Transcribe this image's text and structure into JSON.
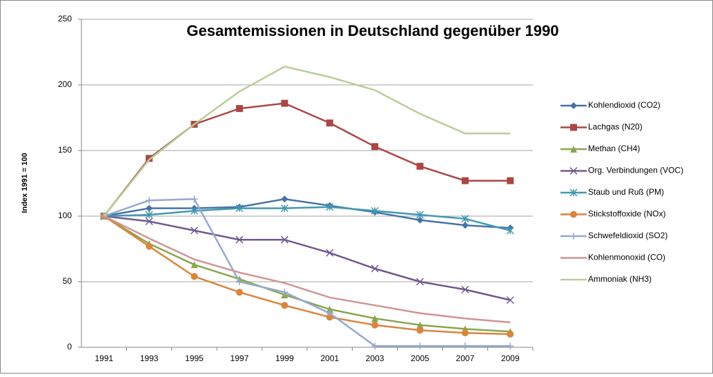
{
  "chart_data": {
    "type": "line",
    "title": "Gesamtemissionen in Deutschland  gegenüber 1990",
    "y_label": "Index 1991 = 100",
    "categories": [
      "1991",
      "1993",
      "1995",
      "1997",
      "1999",
      "2001",
      "2003",
      "2005",
      "2007",
      "2009"
    ],
    "ylim": [
      0,
      250
    ],
    "yticks": [
      0,
      50,
      100,
      150,
      200,
      250
    ],
    "grid": true,
    "legend": "right",
    "series": [
      {
        "name": "Kohlendioxid (CO2)",
        "color": "#4572a7",
        "marker": "diamond",
        "values": [
          100,
          106,
          106,
          107,
          113,
          108,
          103,
          97,
          93,
          91
        ]
      },
      {
        "name": "Lachgas (N20)",
        "color": "#aa4643",
        "marker": "square",
        "values": [
          100,
          144,
          170,
          182,
          186,
          171,
          153,
          138,
          127,
          127
        ]
      },
      {
        "name": "Methan (CH4)",
        "color": "#89a54e",
        "marker": "triangle",
        "values": [
          100,
          79,
          63,
          52,
          40,
          29,
          22,
          17,
          14,
          12
        ]
      },
      {
        "name": "Org. Verbindungen (VOC)",
        "color": "#71588f",
        "marker": "x",
        "values": [
          100,
          96,
          89,
          82,
          82,
          72,
          60,
          50,
          44,
          36
        ]
      },
      {
        "name": "Staub und Ruß (PM)",
        "color": "#4198af",
        "marker": "star",
        "values": [
          100,
          101,
          104,
          106,
          106,
          107,
          104,
          101,
          98,
          89
        ]
      },
      {
        "name": "Stickstoffoxide (NOx)",
        "color": "#db843d",
        "marker": "circle",
        "values": [
          100,
          77,
          54,
          42,
          32,
          23,
          17,
          13,
          11,
          10
        ]
      },
      {
        "name": "Schwefeldioxid (SO2)",
        "color": "#93a9cf",
        "marker": "plus",
        "values": [
          100,
          112,
          113,
          50,
          42,
          26,
          1,
          1,
          1,
          1
        ]
      },
      {
        "name": "Kohlenmonoxid (CO)",
        "color": "#d19392",
        "marker": "none",
        "values": [
          100,
          83,
          67,
          57,
          49,
          38,
          32,
          26,
          22,
          19
        ]
      },
      {
        "name": "Ammoniak (NH3)",
        "color": "#b9cd96",
        "marker": "none",
        "values": [
          100,
          143,
          170,
          195,
          214,
          206,
          196,
          178,
          163,
          163
        ]
      }
    ]
  }
}
